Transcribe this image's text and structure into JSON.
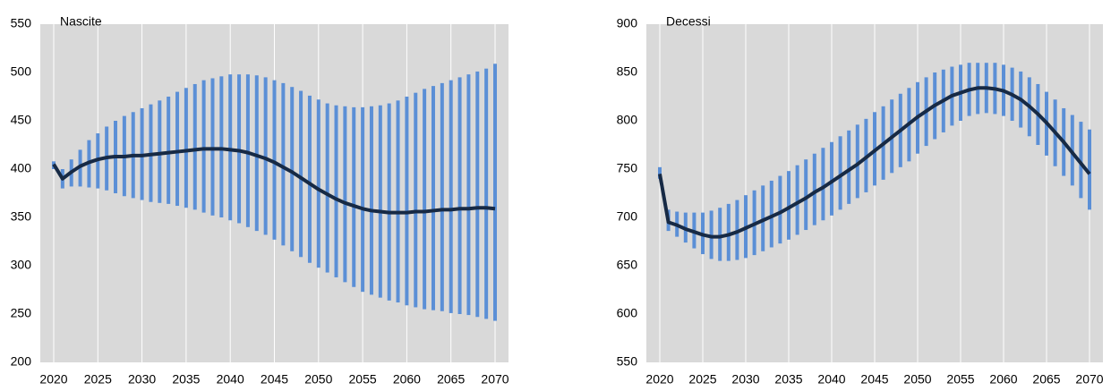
{
  "chart_data": [
    {
      "type": "line",
      "title": "Nascite",
      "x": [
        2020,
        2021,
        2022,
        2023,
        2024,
        2025,
        2026,
        2027,
        2028,
        2029,
        2030,
        2031,
        2032,
        2033,
        2034,
        2035,
        2036,
        2037,
        2038,
        2039,
        2040,
        2041,
        2042,
        2043,
        2044,
        2045,
        2046,
        2047,
        2048,
        2049,
        2050,
        2051,
        2052,
        2053,
        2054,
        2055,
        2056,
        2057,
        2058,
        2059,
        2060,
        2061,
        2062,
        2063,
        2064,
        2065,
        2066,
        2067,
        2068,
        2069,
        2070
      ],
      "series": [
        {
          "color": "#172a45",
          "values": [
            405,
            390,
            397,
            403,
            407,
            410,
            412,
            413,
            413,
            414,
            414,
            415,
            416,
            417,
            418,
            419,
            420,
            421,
            421,
            421,
            420,
            419,
            417,
            414,
            411,
            407,
            402,
            397,
            391,
            385,
            379,
            374,
            369,
            365,
            362,
            359,
            357,
            356,
            355,
            355,
            355,
            356,
            356,
            357,
            358,
            358,
            359,
            359,
            360,
            360,
            359
          ]
        }
      ],
      "ranges": {
        "color": "#5b8fd6",
        "low": [
          400,
          380,
          382,
          382,
          381,
          380,
          378,
          375,
          372,
          370,
          368,
          366,
          365,
          364,
          362,
          360,
          358,
          355,
          352,
          350,
          347,
          344,
          340,
          336,
          332,
          327,
          321,
          315,
          309,
          303,
          298,
          293,
          288,
          283,
          278,
          273,
          270,
          267,
          264,
          262,
          259,
          257,
          255,
          254,
          253,
          251,
          250,
          249,
          247,
          245,
          243
        ],
        "high": [
          408,
          400,
          410,
          420,
          430,
          437,
          444,
          450,
          455,
          459,
          463,
          467,
          471,
          475,
          480,
          484,
          488,
          492,
          494,
          496,
          498,
          498,
          498,
          497,
          495,
          492,
          489,
          485,
          481,
          476,
          472,
          468,
          466,
          465,
          464,
          464,
          465,
          466,
          468,
          471,
          475,
          479,
          483,
          486,
          489,
          492,
          495,
          498,
          501,
          504,
          509
        ]
      },
      "xlim": [
        2020,
        2070
      ],
      "xticks": [
        2020,
        2025,
        2030,
        2035,
        2040,
        2045,
        2050,
        2055,
        2060,
        2065,
        2070
      ],
      "ylim": [
        200,
        550
      ],
      "yticks": [
        200,
        250,
        300,
        350,
        400,
        450,
        500,
        550
      ],
      "grid": true
    },
    {
      "type": "line",
      "title": "Decessi",
      "x": [
        2020,
        2021,
        2022,
        2023,
        2024,
        2025,
        2026,
        2027,
        2028,
        2029,
        2030,
        2031,
        2032,
        2033,
        2034,
        2035,
        2036,
        2037,
        2038,
        2039,
        2040,
        2041,
        2042,
        2043,
        2044,
        2045,
        2046,
        2047,
        2048,
        2049,
        2050,
        2051,
        2052,
        2053,
        2054,
        2055,
        2056,
        2057,
        2058,
        2059,
        2060,
        2061,
        2062,
        2063,
        2064,
        2065,
        2066,
        2067,
        2068,
        2069,
        2070
      ],
      "series": [
        {
          "color": "#172a45",
          "values": [
            745,
            695,
            692,
            688,
            685,
            682,
            680,
            680,
            682,
            685,
            689,
            693,
            697,
            701,
            705,
            710,
            715,
            720,
            726,
            731,
            737,
            743,
            749,
            755,
            762,
            769,
            776,
            783,
            790,
            797,
            804,
            810,
            816,
            821,
            826,
            829,
            832,
            834,
            834,
            833,
            831,
            827,
            822,
            815,
            807,
            798,
            788,
            778,
            767,
            756,
            745
          ]
        }
      ],
      "ranges": {
        "color": "#5b8fd6",
        "low": [
          740,
          686,
          680,
          674,
          668,
          662,
          657,
          655,
          655,
          656,
          658,
          661,
          665,
          669,
          673,
          677,
          682,
          687,
          692,
          697,
          702,
          708,
          714,
          720,
          726,
          733,
          739,
          746,
          752,
          758,
          766,
          774,
          781,
          788,
          795,
          800,
          805,
          807,
          808,
          807,
          805,
          800,
          793,
          784,
          775,
          764,
          753,
          743,
          733,
          720,
          708
        ],
        "high": [
          752,
          708,
          706,
          705,
          705,
          705,
          707,
          710,
          714,
          718,
          723,
          728,
          733,
          738,
          743,
          748,
          754,
          760,
          766,
          772,
          778,
          784,
          790,
          796,
          802,
          809,
          815,
          822,
          828,
          834,
          840,
          845,
          850,
          853,
          856,
          858,
          860,
          860,
          860,
          860,
          858,
          855,
          851,
          845,
          838,
          830,
          822,
          813,
          806,
          799,
          791
        ]
      },
      "xlim": [
        2020,
        2070
      ],
      "xticks": [
        2020,
        2025,
        2030,
        2035,
        2040,
        2045,
        2050,
        2055,
        2060,
        2065,
        2070
      ],
      "ylim": [
        550,
        900
      ],
      "yticks": [
        550,
        600,
        650,
        700,
        750,
        800,
        850,
        900
      ],
      "grid": true
    }
  ]
}
